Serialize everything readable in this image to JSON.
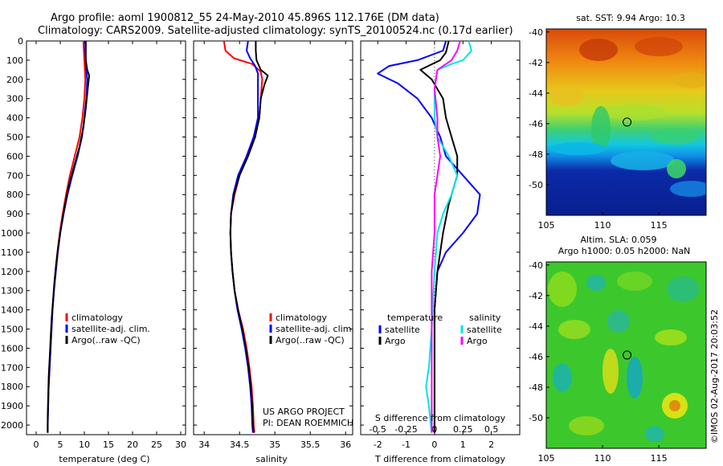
{
  "header": {
    "title_line1": "Argo profile: aoml 1900812_55 24-May-2010 45.896S 112.176E (DM data)",
    "title_line2": "Climatology: CARS2009. Satellite-adjusted climatology: synTS_20100524.nc (0.17d earlier)"
  },
  "colors": {
    "climatology": "#ff0000",
    "satellite": "#0000ff",
    "argo": "#000000",
    "argo_salinity": "#ff00ff",
    "sat_salinity": "#00e5e5"
  },
  "chart_data": [
    {
      "type": "line",
      "id": "temperature",
      "xlabel": "temperature (deg C)",
      "ylabel": "",
      "xlim": [
        -2,
        31
      ],
      "ylim": [
        2050,
        0
      ],
      "xticks": [
        "0",
        "5",
        "10",
        "15",
        "20",
        "25",
        "30"
      ],
      "yticks": [
        "0",
        "100",
        "200",
        "300",
        "400",
        "500",
        "600",
        "700",
        "800",
        "900",
        "1000",
        "1100",
        "1200",
        "1300",
        "1400",
        "1500",
        "1600",
        "1700",
        "1800",
        "1900",
        "2000"
      ],
      "legend": [
        "climatology",
        "satellite-adj. clim.",
        "Argo(..raw -QC)"
      ],
      "series": [
        {
          "name": "climatology",
          "color": "#ff0000",
          "points": [
            [
              9.8,
              0
            ],
            [
              9.9,
              50
            ],
            [
              10.0,
              100
            ],
            [
              10.1,
              150
            ],
            [
              10.2,
              200
            ],
            [
              10.0,
              300
            ],
            [
              9.6,
              400
            ],
            [
              9.0,
              500
            ],
            [
              8.0,
              600
            ],
            [
              7.0,
              700
            ],
            [
              6.2,
              800
            ],
            [
              5.5,
              900
            ],
            [
              4.9,
              1000
            ],
            [
              4.4,
              1100
            ],
            [
              4.0,
              1200
            ],
            [
              3.7,
              1300
            ],
            [
              3.4,
              1400
            ],
            [
              3.2,
              1500
            ],
            [
              3.0,
              1600
            ],
            [
              2.8,
              1700
            ],
            [
              2.6,
              1800
            ],
            [
              2.5,
              1900
            ],
            [
              2.4,
              2000
            ],
            [
              2.4,
              2040
            ]
          ]
        },
        {
          "name": "satellite-adj. clim.",
          "color": "#0000ff",
          "points": [
            [
              10.2,
              0
            ],
            [
              10.2,
              50
            ],
            [
              10.3,
              100
            ],
            [
              10.4,
              150
            ],
            [
              10.6,
              200
            ],
            [
              10.4,
              300
            ],
            [
              10.0,
              400
            ],
            [
              9.5,
              500
            ],
            [
              8.6,
              600
            ],
            [
              7.5,
              700
            ],
            [
              6.5,
              800
            ],
            [
              5.7,
              900
            ],
            [
              5.0,
              1000
            ],
            [
              4.5,
              1100
            ],
            [
              4.1,
              1200
            ],
            [
              3.7,
              1300
            ],
            [
              3.4,
              1400
            ],
            [
              3.2,
              1500
            ],
            [
              3.0,
              1600
            ],
            [
              2.8,
              1700
            ],
            [
              2.6,
              1800
            ],
            [
              2.5,
              1900
            ],
            [
              2.4,
              2000
            ],
            [
              2.4,
              2040
            ]
          ]
        },
        {
          "name": "Argo(..raw -QC)",
          "color": "#000000",
          "points": [
            [
              10.3,
              0
            ],
            [
              10.3,
              50
            ],
            [
              10.3,
              100
            ],
            [
              10.6,
              150
            ],
            [
              11.0,
              180
            ],
            [
              10.7,
              250
            ],
            [
              10.3,
              350
            ],
            [
              9.8,
              450
            ],
            [
              9.0,
              550
            ],
            [
              7.9,
              650
            ],
            [
              6.8,
              750
            ],
            [
              6.0,
              850
            ],
            [
              5.3,
              950
            ],
            [
              4.7,
              1050
            ],
            [
              4.2,
              1150
            ],
            [
              3.8,
              1250
            ],
            [
              3.5,
              1350
            ],
            [
              3.2,
              1450
            ],
            [
              3.0,
              1550
            ],
            [
              2.8,
              1650
            ],
            [
              2.6,
              1750
            ],
            [
              2.5,
              1850
            ],
            [
              2.4,
              1950
            ],
            [
              2.4,
              2040
            ]
          ]
        }
      ]
    },
    {
      "type": "line",
      "id": "salinity",
      "xlabel": "salinity",
      "ylabel": "",
      "xlim": [
        33.85,
        36.1
      ],
      "ylim": [
        2050,
        0
      ],
      "xticks": [
        "34",
        "34.5",
        "35",
        "35.5",
        "36"
      ],
      "yticks": [],
      "legend": [
        "climatology",
        "satellite-adj. clim.",
        "Argo(..raw -QC)"
      ],
      "series": [
        {
          "name": "climatology",
          "color": "#ff0000",
          "points": [
            [
              34.28,
              0
            ],
            [
              34.3,
              50
            ],
            [
              34.42,
              90
            ],
            [
              34.68,
              120
            ],
            [
              34.8,
              160
            ],
            [
              34.82,
              200
            ],
            [
              34.8,
              300
            ],
            [
              34.78,
              400
            ],
            [
              34.7,
              500
            ],
            [
              34.6,
              600
            ],
            [
              34.5,
              700
            ],
            [
              34.43,
              800
            ],
            [
              34.38,
              900
            ],
            [
              34.37,
              1000
            ],
            [
              34.38,
              1100
            ],
            [
              34.4,
              1200
            ],
            [
              34.43,
              1300
            ],
            [
              34.48,
              1400
            ],
            [
              34.55,
              1500
            ],
            [
              34.6,
              1600
            ],
            [
              34.64,
              1700
            ],
            [
              34.67,
              1800
            ],
            [
              34.69,
              1900
            ],
            [
              34.7,
              2000
            ],
            [
              34.71,
              2040
            ]
          ]
        },
        {
          "name": "satellite-adj. clim.",
          "color": "#0000ff",
          "points": [
            [
              34.62,
              0
            ],
            [
              34.6,
              50
            ],
            [
              34.65,
              90
            ],
            [
              34.72,
              130
            ],
            [
              34.76,
              170
            ],
            [
              34.76,
              250
            ],
            [
              34.76,
              350
            ],
            [
              34.76,
              400
            ],
            [
              34.7,
              500
            ],
            [
              34.6,
              600
            ],
            [
              34.48,
              700
            ],
            [
              34.41,
              800
            ],
            [
              34.38,
              900
            ],
            [
              34.37,
              1000
            ],
            [
              34.38,
              1100
            ],
            [
              34.4,
              1200
            ],
            [
              34.43,
              1300
            ],
            [
              34.47,
              1400
            ],
            [
              34.53,
              1500
            ],
            [
              34.58,
              1600
            ],
            [
              34.62,
              1700
            ],
            [
              34.65,
              1800
            ],
            [
              34.67,
              1900
            ],
            [
              34.68,
              2000
            ],
            [
              34.69,
              2040
            ]
          ]
        },
        {
          "name": "Argo(..raw -QC)",
          "color": "#000000",
          "points": [
            [
              34.73,
              0
            ],
            [
              34.73,
              50
            ],
            [
              34.74,
              100
            ],
            [
              34.8,
              150
            ],
            [
              34.9,
              180
            ],
            [
              34.85,
              230
            ],
            [
              34.8,
              300
            ],
            [
              34.78,
              400
            ],
            [
              34.72,
              500
            ],
            [
              34.62,
              600
            ],
            [
              34.5,
              700
            ],
            [
              34.42,
              800
            ],
            [
              34.38,
              900
            ],
            [
              34.37,
              1000
            ],
            [
              34.38,
              1100
            ],
            [
              34.4,
              1200
            ],
            [
              34.43,
              1300
            ],
            [
              34.48,
              1400
            ],
            [
              34.54,
              1500
            ],
            [
              34.59,
              1600
            ],
            [
              34.63,
              1700
            ],
            [
              34.66,
              1800
            ],
            [
              34.68,
              1900
            ],
            [
              34.69,
              2000
            ],
            [
              34.7,
              2040
            ]
          ]
        }
      ]
    },
    {
      "type": "line",
      "id": "differences",
      "xlabel": "T difference from climatology",
      "xlabel_top": "S difference from climatology",
      "xlim": [
        -2.6,
        3.0
      ],
      "xticks": [
        "-2",
        "-1",
        "0",
        "1",
        "2"
      ],
      "xticks_top": [
        "-0.5",
        "-0.25",
        "0",
        "0.25",
        "0.5"
      ],
      "ylim": [
        2050,
        0
      ],
      "legend_headers": [
        "temperature",
        "salinity"
      ],
      "legend": [
        "satellite",
        "Argo",
        "satellite",
        "Argo"
      ],
      "series": [
        {
          "name": "satellite",
          "group": "temperature",
          "color": "#0000ff",
          "points": [
            [
              0.4,
              0
            ],
            [
              0.3,
              50
            ],
            [
              -0.6,
              100
            ],
            [
              -1.6,
              130
            ],
            [
              -2.0,
              170
            ],
            [
              -1.3,
              220
            ],
            [
              -0.6,
              300
            ],
            [
              -0.1,
              400
            ],
            [
              0.2,
              500
            ],
            [
              0.4,
              600
            ],
            [
              1.0,
              700
            ],
            [
              1.6,
              800
            ],
            [
              1.5,
              900
            ],
            [
              1.0,
              1000
            ],
            [
              0.4,
              1100
            ],
            [
              0.1,
              1200
            ],
            [
              0,
              1400
            ],
            [
              0,
              2040
            ]
          ]
        },
        {
          "name": "Argo",
          "group": "temperature",
          "color": "#000000",
          "points": [
            [
              0.5,
              0
            ],
            [
              0.4,
              60
            ],
            [
              0.2,
              100
            ],
            [
              -0.5,
              150
            ],
            [
              -0.1,
              200
            ],
            [
              0.3,
              300
            ],
            [
              0.4,
              400
            ],
            [
              0.6,
              500
            ],
            [
              0.8,
              600
            ],
            [
              0.8,
              700
            ],
            [
              0.5,
              850
            ],
            [
              0.3,
              1000
            ],
            [
              0.1,
              1200
            ],
            [
              0,
              1400
            ],
            [
              0,
              2040
            ]
          ]
        },
        {
          "name": "satellite",
          "group": "salinity",
          "color": "#00e5e5",
          "points": [
            [
              1.2,
              0
            ],
            [
              1.3,
              50
            ],
            [
              1.0,
              100
            ],
            [
              0.6,
              120
            ],
            [
              0.1,
              150
            ],
            [
              0,
              250
            ],
            [
              0,
              400
            ],
            [
              0.1,
              500
            ],
            [
              0.5,
              600
            ],
            [
              0.8,
              700
            ],
            [
              0.6,
              800
            ],
            [
              0.3,
              900
            ],
            [
              0.1,
              1000
            ],
            [
              0,
              1200
            ],
            [
              -0.1,
              1500
            ],
            [
              -0.2,
              1700
            ],
            [
              -0.3,
              1800
            ],
            [
              -0.2,
              1900
            ],
            [
              -0.1,
              2040
            ]
          ]
        },
        {
          "name": "Argo",
          "group": "salinity",
          "color": "#ff00ff",
          "points": [
            [
              0.9,
              0
            ],
            [
              0.8,
              50
            ],
            [
              0.6,
              100
            ],
            [
              0.1,
              150
            ],
            [
              0,
              250
            ],
            [
              0.1,
              400
            ],
            [
              0.1,
              500
            ],
            [
              0.2,
              600
            ],
            [
              0.1,
              700
            ],
            [
              0,
              800
            ],
            [
              0,
              1000
            ],
            [
              -0.1,
              1200
            ],
            [
              -0.1,
              1500
            ],
            [
              -0.1,
              1800
            ],
            [
              -0.1,
              2040
            ]
          ]
        }
      ]
    }
  ],
  "annotation": {
    "line1": "US ARGO PROJECT",
    "line2": "PI: DEAN ROEMMICH"
  },
  "map_sst": {
    "title": "sat. SST: 9.94  Argo: 10.3",
    "xticks": [
      "105",
      "110",
      "115"
    ],
    "yticks": [
      "-40",
      "-42",
      "-44",
      "-46",
      "-48",
      "-50"
    ],
    "xlim": [
      105,
      119.2
    ],
    "ylim": [
      -52,
      -39.8
    ],
    "marker": {
      "lon": 112.176,
      "lat": -45.896
    }
  },
  "map_sla": {
    "title_line1": "Altim. SLA: 0.059",
    "title_line2": "Argo h1000: 0.05 h2000: NaN",
    "xticks": [
      "105",
      "110",
      "115"
    ],
    "yticks": [
      "-40",
      "-42",
      "-44",
      "-46",
      "-48",
      "-50"
    ],
    "xlim": [
      105,
      119.2
    ],
    "ylim": [
      -52,
      -39.8
    ],
    "marker": {
      "lon": 112.176,
      "lat": -45.896
    }
  },
  "footer": {
    "credit": "©IMOS 02-Aug-2017 20:03:52"
  }
}
